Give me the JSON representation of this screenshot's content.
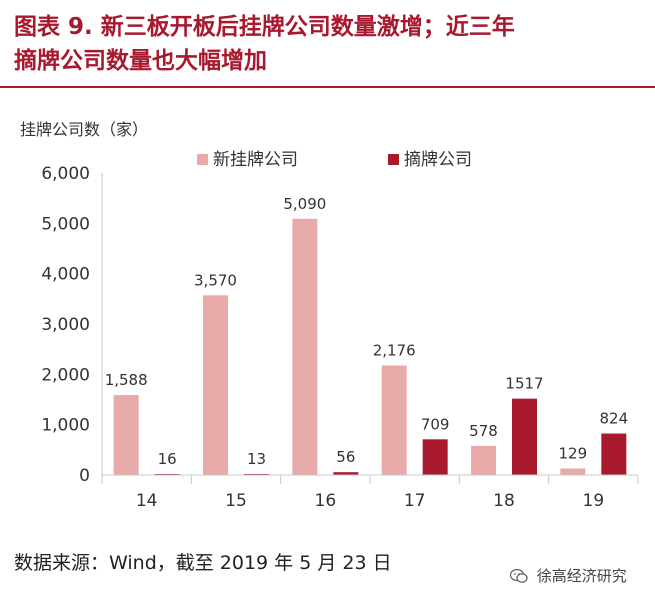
{
  "title": {
    "line1": "图表 9.  新三板开板后挂牌公司数量激增；近三年",
    "line2": "摘牌公司数量也大幅增加"
  },
  "source": "数据来源：Wind，截至 2019 年 5 月 23 日",
  "brand": "徐高经济研究",
  "brand_icon": "wechat-icon",
  "colors": {
    "title": "#a8192e",
    "new_listing": "#e8a9a9",
    "delisting": "#a8192e",
    "axis": "#c8c8c8"
  },
  "chart_data": {
    "type": "bar",
    "ylabel": "挂牌公司数（家）",
    "categories": [
      "14",
      "15",
      "16",
      "17",
      "18",
      "19"
    ],
    "ylim": [
      0,
      6000
    ],
    "yticks": [
      "0",
      "1,000",
      "2,000",
      "3,000",
      "4,000",
      "5,000",
      "6,000"
    ],
    "ytick_values": [
      0,
      1000,
      2000,
      3000,
      4000,
      5000,
      6000
    ],
    "legend_position": "top",
    "series": [
      {
        "name": "新挂牌公司",
        "values": [
          1588,
          3570,
          5090,
          2176,
          578,
          129
        ],
        "labels": [
          "1,588",
          "3,570",
          "5,090",
          "2,176",
          "578",
          "129"
        ]
      },
      {
        "name": "摘牌公司",
        "values": [
          16,
          13,
          56,
          709,
          1517,
          824
        ],
        "labels": [
          "16",
          "13",
          "56",
          "709",
          "1517",
          "824"
        ]
      }
    ]
  }
}
